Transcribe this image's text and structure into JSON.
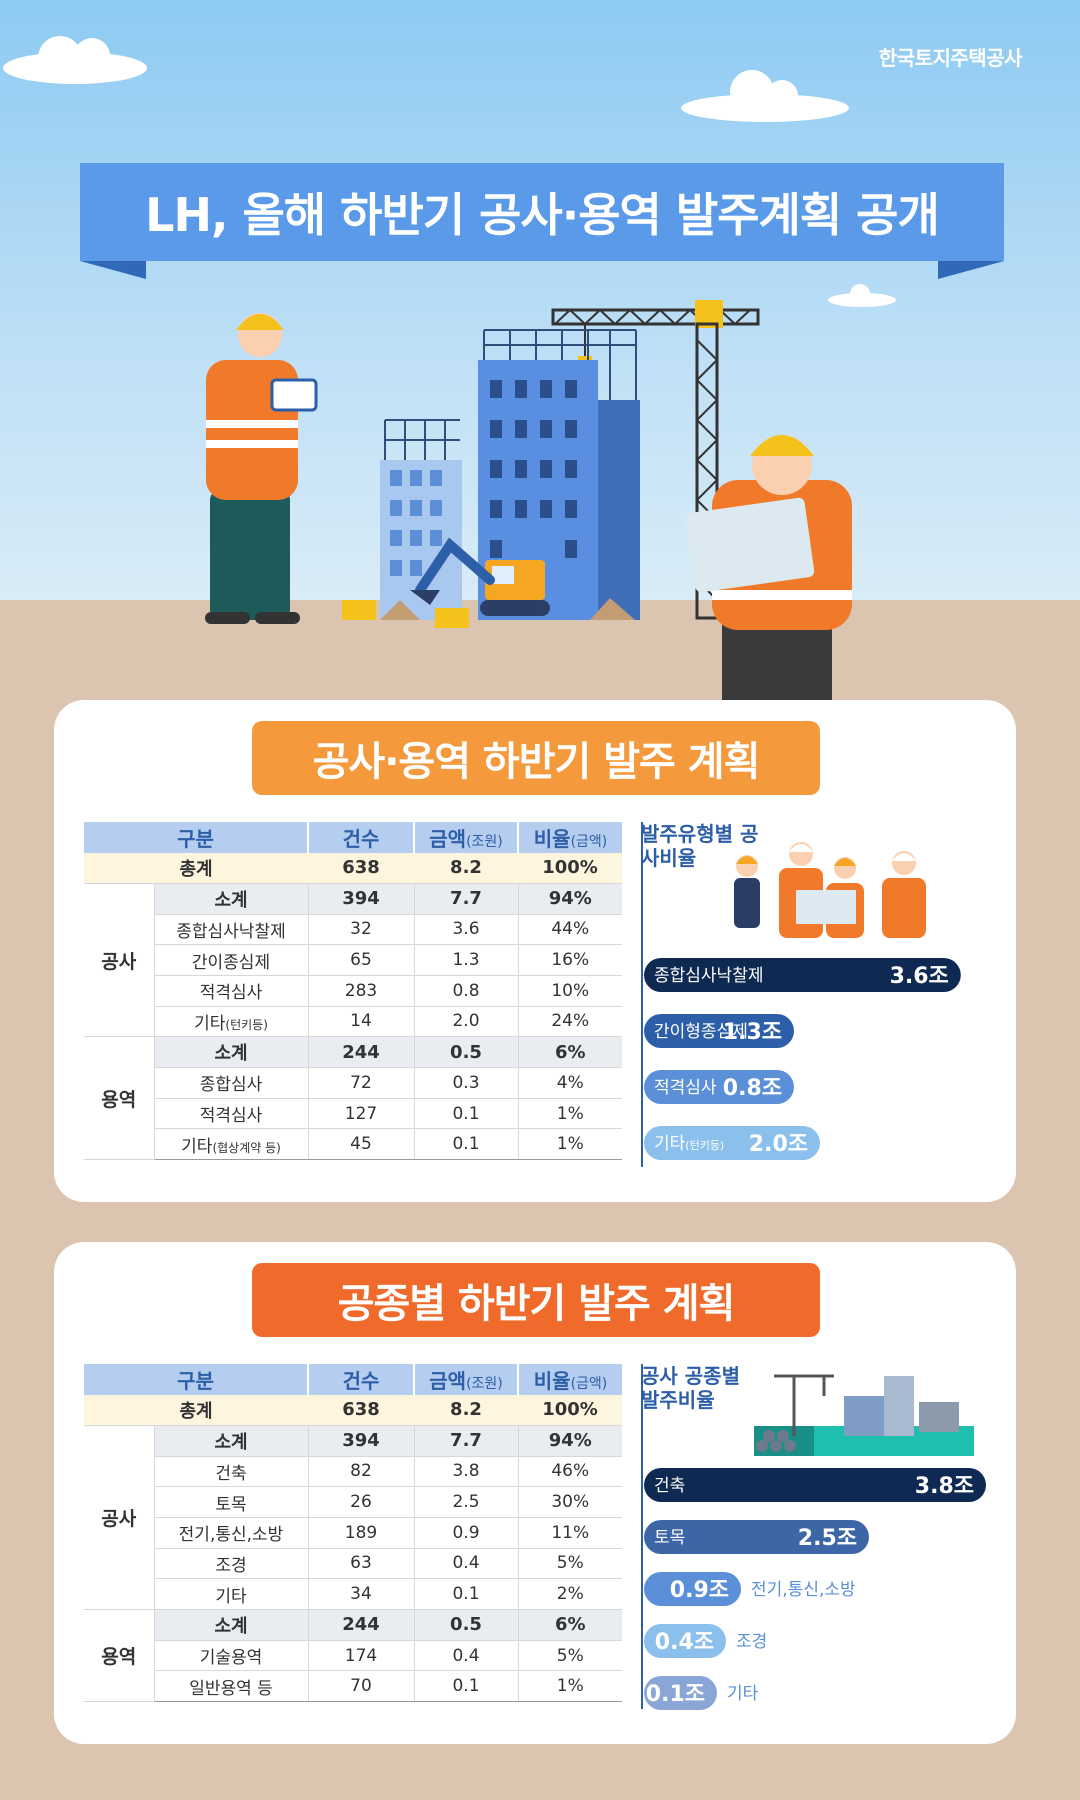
{
  "org_name": "한국토지주택공사",
  "title": "LH, 올해 하반기 공사·용역 발주계획 공개",
  "section1": {
    "heading": "공사·용역 하반기 발주 계획",
    "headers": {
      "category": "구분",
      "count": "건수",
      "amount": "금액",
      "amount_unit": "(조원)",
      "ratio": "비율",
      "ratio_unit": "(금액)"
    },
    "total": {
      "label": "총계",
      "count": "638",
      "amount": "8.2",
      "ratio": "100%"
    },
    "groups": [
      {
        "name": "공사",
        "rows": [
          {
            "label": "소계",
            "count": "394",
            "amount": "7.7",
            "ratio": "94%"
          },
          {
            "label": "종합심사낙찰제",
            "count": "32",
            "amount": "3.6",
            "ratio": "44%"
          },
          {
            "label": "간이종심제",
            "count": "65",
            "amount": "1.3",
            "ratio": "16%"
          },
          {
            "label": "적격심사",
            "count": "283",
            "amount": "0.8",
            "ratio": "10%"
          },
          {
            "label": "기타",
            "label_small": "(턴키등)",
            "count": "14",
            "amount": "2.0",
            "ratio": "24%"
          }
        ]
      },
      {
        "name": "용역",
        "rows": [
          {
            "label": "소계",
            "count": "244",
            "amount": "0.5",
            "ratio": "6%"
          },
          {
            "label": "종합심사",
            "count": "72",
            "amount": "0.3",
            "ratio": "4%"
          },
          {
            "label": "적격심사",
            "count": "127",
            "amount": "0.1",
            "ratio": "1%"
          },
          {
            "label": "기타",
            "label_small": "(협상계약 등)",
            "count": "45",
            "amount": "0.1",
            "ratio": "1%"
          }
        ]
      }
    ],
    "chart_title": "발주유형별 공사비율"
  },
  "section2": {
    "heading": "공종별 하반기 발주 계획",
    "headers": {
      "category": "구분",
      "count": "건수",
      "amount": "금액",
      "amount_unit": "(조원)",
      "ratio": "비율",
      "ratio_unit": "(금액)"
    },
    "total": {
      "label": "총계",
      "count": "638",
      "amount": "8.2",
      "ratio": "100%"
    },
    "groups": [
      {
        "name": "공사",
        "rows": [
          {
            "label": "소계",
            "count": "394",
            "amount": "7.7",
            "ratio": "94%"
          },
          {
            "label": "건축",
            "count": "82",
            "amount": "3.8",
            "ratio": "46%"
          },
          {
            "label": "토목",
            "count": "26",
            "amount": "2.5",
            "ratio": "30%"
          },
          {
            "label": "전기,통신,소방",
            "count": "189",
            "amount": "0.9",
            "ratio": "11%"
          },
          {
            "label": "조경",
            "count": "63",
            "amount": "0.4",
            "ratio": "5%"
          },
          {
            "label": "기타",
            "count": "34",
            "amount": "0.1",
            "ratio": "2%"
          }
        ]
      },
      {
        "name": "용역",
        "rows": [
          {
            "label": "소계",
            "count": "244",
            "amount": "0.5",
            "ratio": "6%"
          },
          {
            "label": "기술용역",
            "count": "174",
            "amount": "0.4",
            "ratio": "5%"
          },
          {
            "label": "일반용역 등",
            "count": "70",
            "amount": "0.1",
            "ratio": "1%"
          }
        ]
      }
    ],
    "chart_title": "공사 공종별 발주비율"
  },
  "chart_data": [
    {
      "type": "bar",
      "orientation": "horizontal",
      "title": "발주유형별 공사비율",
      "categories": [
        "종합심사낙찰제",
        "간이형종심제",
        "적격심사",
        "기타"
      ],
      "category_small": [
        "",
        "",
        "",
        "(턴키등)"
      ],
      "values": [
        3.6,
        1.3,
        0.8,
        2.0
      ],
      "value_labels": [
        "3.6조",
        "1.3조",
        "0.8조",
        "2.0조"
      ],
      "colors": [
        "#0f2a52",
        "#2c5fa8",
        "#5b90d8",
        "#8cc0ec"
      ]
    },
    {
      "type": "bar",
      "orientation": "horizontal",
      "title": "공사 공종별 발주비율",
      "categories": [
        "건축",
        "토목",
        "전기,통신,소방",
        "조경",
        "기타"
      ],
      "values": [
        3.8,
        2.5,
        0.9,
        0.4,
        0.1
      ],
      "value_labels": [
        "3.8조",
        "2.5조",
        "0.9조",
        "0.4조",
        "0.1조"
      ],
      "colors": [
        "#0f2a52",
        "#3d66a6",
        "#5b90d8",
        "#8cc0ec",
        "#8aa6d6"
      ]
    }
  ]
}
